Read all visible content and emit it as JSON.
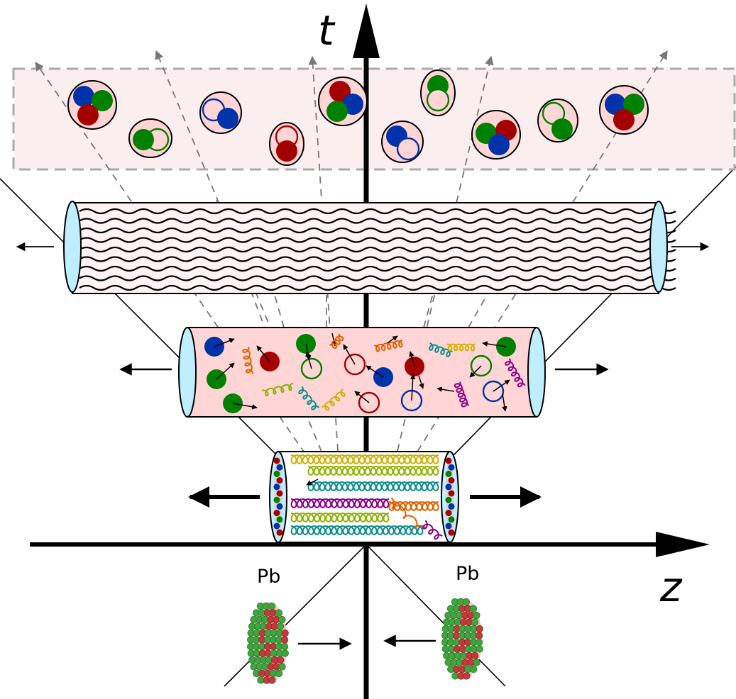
{
  "axes": {
    "time_label": "t",
    "z_label": "z"
  },
  "nuclei": {
    "left_label": "Pb",
    "right_label": "Pb"
  },
  "colors": {
    "quark_red": "#a50000",
    "quark_green": "#008000",
    "quark_blue": "#0033aa",
    "medium_fill": "#ffd5d5",
    "hadron_region_fill": "#fbeeee",
    "tube_cap": "#bfefff",
    "gluon_colors": [
      "#cfb000",
      "#8fb000",
      "#0f8c8c",
      "#e06000",
      "#8a008a"
    ]
  },
  "icons": {
    "hadron": "hadron-icon",
    "quark": "quark-icon",
    "antiquark": "antiquark-icon",
    "gluon": "gluon-spring-icon",
    "nucleus": "lead-nucleus-icon"
  }
}
